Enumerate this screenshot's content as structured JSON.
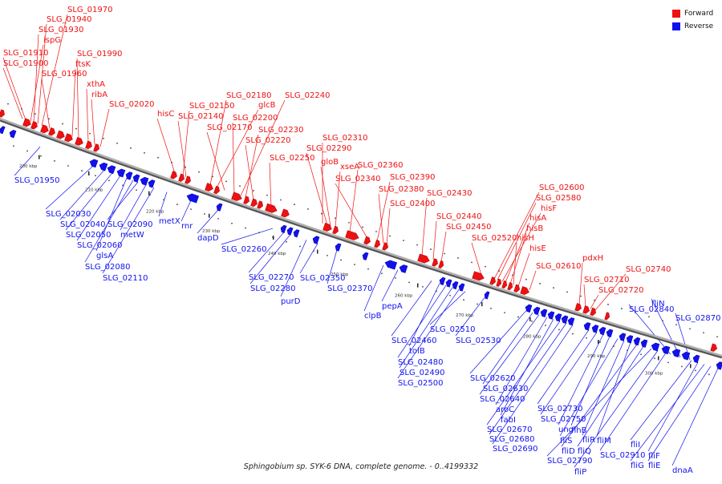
{
  "caption": "Sphingobium sp. SYK-6 DNA, complete genome. - 0..4199332",
  "legend": [
    {
      "label": "Forward",
      "color": "#ee1111"
    },
    {
      "label": "Reverse",
      "color": "#1111ee"
    }
  ],
  "colors": {
    "forward": "#ee1111",
    "reverse": "#1111ee",
    "backbone": "#888888"
  },
  "ticks": [
    "200 kbp",
    "210 kbp",
    "220 kbp",
    "230 kbp",
    "240 kbp",
    "250 kbp",
    "260 kbp",
    "270 kbp",
    "280 kbp",
    "290 kbp",
    "300 kbp"
  ],
  "forward_labels": [
    "SLG_01970",
    "SLG_01940",
    "SLG_01930",
    "ispG",
    "SLG_01910",
    "SLG_01900",
    "SLG_01990",
    "ftsK",
    "SLG_01960",
    "xthA",
    "ribA",
    "SLG_02020",
    "hisC",
    "SLG_02150",
    "SLG_02140",
    "SLG_02180",
    "glcB",
    "SLG_02240",
    "SLG_02200",
    "SLG_02170",
    "SLG_02230",
    "SLG_02220",
    "SLG_02250",
    "SLG_02310",
    "SLG_02290",
    "gloB",
    "xseA",
    "SLG_02360",
    "SLG_02340",
    "SLG_02390",
    "SLG_02380",
    "SLG_02400",
    "SLG_02430",
    "SLG_02440",
    "SLG_02450",
    "SLG_02520",
    "SLG_02600",
    "SLG_02580",
    "hisF",
    "hisA",
    "hisB",
    "hisH",
    "hisE",
    "SLG_02610",
    "pdxH",
    "SLG_02740",
    "SLG_02710",
    "SLG_02720"
  ],
  "reverse_labels": [
    "SLG_01950",
    "SLG_02030",
    "SLG_02040",
    "SLG_02050",
    "SLG_02060",
    "glsA",
    "SLG_02080",
    "SLG_02090",
    "metW",
    "SLG_02110",
    "metX",
    "rnr",
    "dapD",
    "SLG_02260",
    "SLG_02270",
    "SLG_02280",
    "purD",
    "SLG_02350",
    "SLG_02370",
    "clpB",
    "pepA",
    "SLG_02460",
    "tolB",
    "SLG_02480",
    "SLG_02490",
    "SLG_02500",
    "SLG_02510",
    "SLG_02530",
    "SLG_02620",
    "SLG_02630",
    "SLG_02640",
    "aroC",
    "fabI",
    "SLG_02670",
    "SLG_02680",
    "SLG_02690",
    "SLG_02730",
    "SLG_02750",
    "ung",
    "flhB",
    "fliS",
    "fliR",
    "fliM",
    "fliD",
    "fliQ",
    "SLG_02790",
    "fliP",
    "SLG_02910",
    "SLG_02840",
    "fliN",
    "SLG_02870",
    "fliI",
    "fliF",
    "fliG",
    "fliE",
    "dnaA"
  ]
}
